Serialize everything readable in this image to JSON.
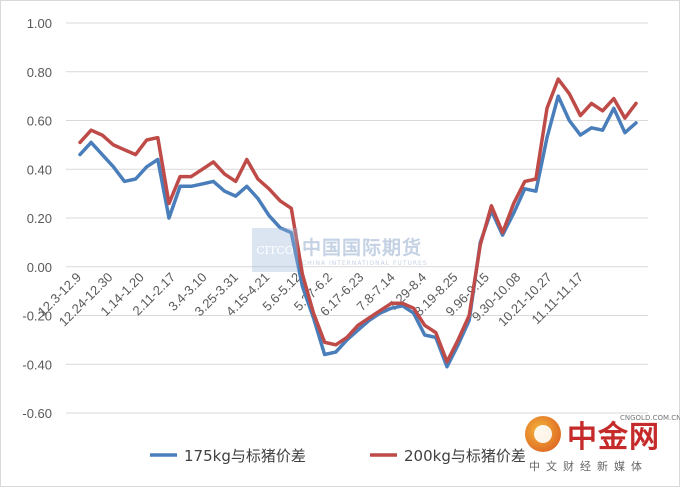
{
  "chart_data": {
    "type": "line",
    "ylim": [
      -0.6,
      1.0
    ],
    "yticks": [
      -0.6,
      -0.4,
      -0.2,
      0.0,
      0.2,
      0.4,
      0.6,
      0.8,
      1.0
    ],
    "ytick_labels": [
      "-0.60",
      "-0.40",
      "-0.20",
      "0.00",
      "0.20",
      "0.40",
      "0.60",
      "0.80",
      "1.00"
    ],
    "xtick_labels": [
      "12.3-12.9",
      "12.24-12.30",
      "1.14-1.20",
      "2.11-2.17",
      "3.4-3.10",
      "3.25-3.31",
      "4.15-4.21",
      "5.6-5.12",
      "5.27-6.2",
      "6.17-6.23",
      "7.8-7.14",
      "7.29-8.4",
      "8.19-8.25",
      "9.96-9.15",
      "9.30-10.08",
      "10.21-10.27",
      "11.11-11.17"
    ],
    "grid": true,
    "legend": "bottom",
    "series": [
      {
        "name": "175kg与标猪价差",
        "color": "#4a7ebb",
        "values": [
          0.46,
          0.51,
          0.46,
          0.41,
          0.35,
          0.36,
          0.41,
          0.44,
          0.2,
          0.33,
          0.33,
          0.34,
          0.35,
          0.31,
          0.29,
          0.33,
          0.28,
          0.21,
          0.16,
          0.14,
          -0.08,
          -0.21,
          -0.36,
          -0.35,
          -0.3,
          -0.26,
          -0.22,
          -0.19,
          -0.17,
          -0.16,
          -0.19,
          -0.28,
          -0.29,
          -0.41,
          -0.32,
          -0.22,
          0.1,
          0.23,
          0.13,
          0.22,
          0.32,
          0.31,
          0.53,
          0.7,
          0.6,
          0.54,
          0.57,
          0.56,
          0.65,
          0.55,
          0.59
        ]
      },
      {
        "name": "200kg与标猪价差",
        "color": "#be4b48",
        "values": [
          0.51,
          0.56,
          0.54,
          0.5,
          0.48,
          0.46,
          0.52,
          0.53,
          0.26,
          0.37,
          0.37,
          0.4,
          0.43,
          0.38,
          0.35,
          0.44,
          0.36,
          0.32,
          0.27,
          0.24,
          -0.03,
          -0.19,
          -0.31,
          -0.32,
          -0.29,
          -0.24,
          -0.21,
          -0.18,
          -0.15,
          -0.15,
          -0.17,
          -0.24,
          -0.27,
          -0.39,
          -0.3,
          -0.2,
          0.09,
          0.25,
          0.14,
          0.26,
          0.35,
          0.36,
          0.65,
          0.77,
          0.71,
          0.62,
          0.67,
          0.64,
          0.69,
          0.61,
          0.67
        ]
      }
    ]
  },
  "watermark": {
    "box": "CITCO",
    "text": "中国国际期货",
    "sub": "CHINA INTERNATIONAL FUTURES"
  },
  "logo": {
    "name": "中金网",
    "url": "CNGOLD.COM.CN",
    "tagline": "中文财经新媒体"
  }
}
